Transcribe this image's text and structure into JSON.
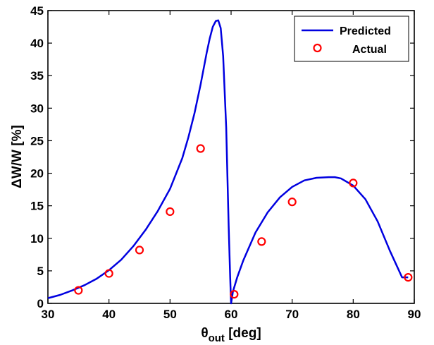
{
  "chart_data": {
    "type": "line",
    "xlabel": {
      "symbol": "θ",
      "sub": "out",
      "rest": " [deg]"
    },
    "ylabel": "ΔW/W [%]",
    "xlim": [
      30,
      90
    ],
    "ylim": [
      0,
      45
    ],
    "xticks": [
      30,
      40,
      50,
      60,
      70,
      80,
      90
    ],
    "yticks": [
      0,
      5,
      10,
      15,
      20,
      25,
      30,
      35,
      40,
      45
    ],
    "grid": false,
    "legend_position": "top-right",
    "colors": {
      "predicted": "#0000e0",
      "actual": "#ff0000"
    },
    "series": [
      {
        "name": "Predicted",
        "kind": "line",
        "x": [
          30,
          32,
          34,
          36,
          38,
          40,
          42,
          44,
          46,
          48,
          50,
          52,
          53,
          54,
          55,
          56,
          56.5,
          57,
          57.5,
          57.9,
          58.3,
          58.7,
          59.2,
          59.6,
          59.85,
          60,
          60.3,
          61,
          62,
          64,
          66,
          68,
          70,
          72,
          74,
          76,
          77,
          78,
          80,
          82,
          84,
          86,
          88,
          89
        ],
        "y": [
          0.8,
          1.3,
          2.0,
          2.8,
          3.8,
          5.1,
          6.7,
          8.8,
          11.3,
          14.2,
          17.6,
          22.3,
          25.5,
          29.2,
          33.6,
          38.5,
          40.7,
          42.5,
          43.4,
          43.5,
          42.3,
          38.0,
          27.0,
          12.0,
          4.0,
          0.0,
          1.8,
          4.0,
          6.6,
          10.9,
          14.0,
          16.3,
          17.9,
          18.9,
          19.3,
          19.4,
          19.4,
          19.2,
          18.1,
          16.0,
          12.6,
          8.1,
          4.0,
          4.0
        ]
      },
      {
        "name": "Actual",
        "kind": "scatter",
        "x": [
          35,
          40,
          45,
          50,
          55,
          60.5,
          65,
          70,
          80,
          89
        ],
        "y": [
          2.0,
          4.6,
          8.2,
          14.1,
          23.8,
          1.4,
          9.5,
          15.6,
          18.5,
          4.0
        ]
      }
    ]
  }
}
